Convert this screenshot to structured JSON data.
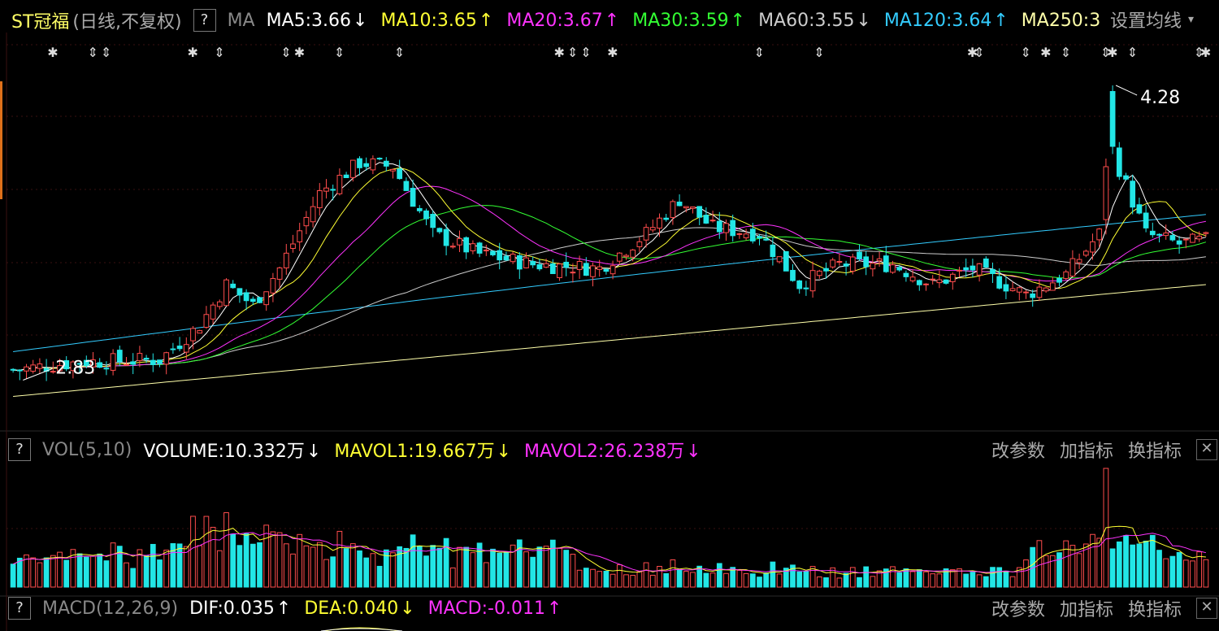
{
  "main_header": {
    "stock_name": "ST冠福",
    "period": "(日线,不复权)",
    "help": "?",
    "indicator": "MA",
    "ma": [
      {
        "label": "MA5:3.66",
        "arrow": "↓",
        "color": "#ffffff"
      },
      {
        "label": "MA10:3.65",
        "arrow": "↑",
        "color": "#ffff33"
      },
      {
        "label": "MA20:3.67",
        "arrow": "↑",
        "color": "#ff33ff"
      },
      {
        "label": "MA30:3.59",
        "arrow": "↑",
        "color": "#33ff33"
      },
      {
        "label": "MA60:3.55",
        "arrow": "↓",
        "color": "#cccccc"
      },
      {
        "label": "MA120:3.64",
        "arrow": "↑",
        "color": "#33ccff"
      },
      {
        "label": "MA250:3",
        "arrow": "",
        "color": "#ffffaa"
      }
    ],
    "settings": "设置均线",
    "settings_caret": "▾"
  },
  "vol_header": {
    "help": "?",
    "name": "VOL(5,10)",
    "items": [
      {
        "label": "VOLUME:10.332万",
        "arrow": "↓",
        "color": "#ffffff"
      },
      {
        "label": "MAVOL1:19.667万",
        "arrow": "↓",
        "color": "#ffff33"
      },
      {
        "label": "MAVOL2:26.238万",
        "arrow": "↓",
        "color": "#ff33ff"
      }
    ],
    "btn_params": "改参数",
    "btn_add": "加指标",
    "btn_switch": "换指标",
    "btn_close": "✕"
  },
  "macd_header": {
    "help": "?",
    "name": "MACD(12,26,9)",
    "items": [
      {
        "label": "DIF:0.035",
        "arrow": "↑",
        "color": "#ffffff"
      },
      {
        "label": "DEA:0.040",
        "arrow": "↓",
        "color": "#ffff33"
      },
      {
        "label": "MACD:-0.011",
        "arrow": "↑",
        "color": "#ff33ff"
      }
    ],
    "btn_params": "改参数",
    "btn_add": "加指标",
    "btn_switch": "换指标",
    "btn_close": "✕"
  },
  "chart_data": {
    "type": "candlestick",
    "bars": 180,
    "price_range": [
      2.6,
      4.4
    ],
    "low_label": "2.83",
    "high_label": "4.28",
    "close_anchors": [
      [
        0,
        2.88
      ],
      [
        10,
        2.92
      ],
      [
        22,
        2.93
      ],
      [
        28,
        3.1
      ],
      [
        32,
        3.3
      ],
      [
        36,
        3.2
      ],
      [
        40,
        3.38
      ],
      [
        46,
        3.75
      ],
      [
        52,
        3.9
      ],
      [
        57,
        3.88
      ],
      [
        63,
        3.55
      ],
      [
        70,
        3.45
      ],
      [
        78,
        3.4
      ],
      [
        88,
        3.38
      ],
      [
        95,
        3.55
      ],
      [
        100,
        3.72
      ],
      [
        105,
        3.58
      ],
      [
        112,
        3.55
      ],
      [
        118,
        3.3
      ],
      [
        124,
        3.4
      ],
      [
        132,
        3.4
      ],
      [
        138,
        3.3
      ],
      [
        144,
        3.38
      ],
      [
        152,
        3.25
      ],
      [
        158,
        3.35
      ],
      [
        163,
        3.55
      ],
      [
        165,
        3.95
      ],
      [
        170,
        3.55
      ],
      [
        175,
        3.5
      ],
      [
        179,
        3.52
      ]
    ],
    "ma250_range": [
      2.85,
      3.4
    ],
    "ma120_range": [
      2.97,
      3.64
    ],
    "ma60_range": [
      3.05,
      3.6
    ],
    "volume_spike_index": 164
  }
}
